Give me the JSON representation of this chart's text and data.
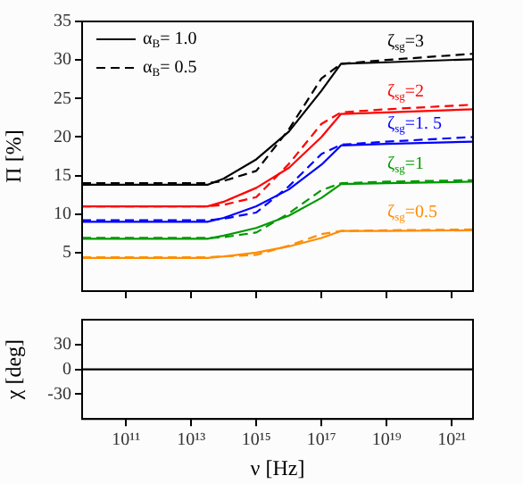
{
  "chart_data": [
    {
      "type": "line",
      "ylabel": "Π [%]",
      "log": "x",
      "xlim": [
        4500000000.0,
        4.5e+21
      ],
      "ylim": [
        0,
        35
      ],
      "yticks": [
        5,
        10,
        15,
        20,
        25,
        30,
        35
      ],
      "xticks": [
        {
          "value": 100000000000.0,
          "label": null
        },
        {
          "value": 10000000000000.0,
          "label": null
        },
        {
          "value": 1000000000000000.0,
          "label": null
        },
        {
          "value": 1e+17,
          "label": null
        },
        {
          "value": 1e+19,
          "label": null
        },
        {
          "value": 1e+21,
          "label": null
        }
      ],
      "tick_labels": "y",
      "legend": "top left",
      "marker": "none",
      "x": [
        4500000000.0,
        10000000000000.0,
        31600000000000.0,
        100000000000000.0,
        1000000000000000.0,
        1e+16,
        1e+17,
        4e+17,
        1e+19,
        4.5e+21
      ],
      "series": [
        {
          "name": "α$_{B}$= 1.0",
          "color": "#000000",
          "line_style": "solid",
          "values": [
            13.8,
            13.8,
            13.8,
            14.6,
            17.1,
            20.7,
            26.0,
            29.5,
            29.7,
            30.1
          ]
        },
        {
          "name": "α$_{B}$= 0.5",
          "color": "#000000",
          "line_style": "dashed",
          "values": [
            14.0,
            14.0,
            14.0,
            14.3,
            15.6,
            21.0,
            27.6,
            29.5,
            30.0,
            30.8
          ]
        },
        {
          "color": "#ff0000",
          "line_style": "solid",
          "values": [
            11,
            11,
            11,
            11.6,
            13.4,
            16.0,
            20.0,
            23.0,
            23.2,
            23.6
          ]
        },
        {
          "color": "#ff0000",
          "line_style": "dashed",
          "values": [
            11,
            11,
            11,
            11.2,
            12.2,
            16.5,
            21.7,
            23.2,
            23.6,
            24.2
          ]
        },
        {
          "color": "#0000ff",
          "line_style": "solid",
          "values": [
            9,
            9,
            9,
            9.5,
            11.0,
            13.2,
            16.4,
            18.9,
            19.1,
            19.4
          ]
        },
        {
          "color": "#0000ff",
          "line_style": "dashed",
          "values": [
            9.2,
            9.2,
            9.2,
            9.4,
            10.2,
            13.6,
            17.8,
            19,
            19.4,
            20
          ]
        },
        {
          "color": "#009900",
          "line_style": "solid",
          "values": [
            6.8,
            6.8,
            6.8,
            7.2,
            8.2,
            9.8,
            12.1,
            13.9,
            14.0,
            14.2
          ]
        },
        {
          "color": "#009900",
          "line_style": "dashed",
          "values": [
            6.9,
            6.9,
            6.9,
            7.0,
            7.6,
            10.1,
            13.1,
            14,
            14.2,
            14.4
          ]
        },
        {
          "color": "#ff8c00",
          "line_style": "solid",
          "values": [
            4.3,
            4.3,
            4.3,
            4.5,
            5.0,
            5.8,
            6.9,
            7.8,
            7.8,
            7.9
          ]
        },
        {
          "color": "#ff8c00",
          "line_style": "dashed",
          "values": [
            4.4,
            4.4,
            4.4,
            4.5,
            4.7,
            5.9,
            7.4,
            7.8,
            7.9,
            8.0
          ]
        }
      ],
      "annotations": [
        "ζ$_{sg}$=3",
        "ζ$_{sg}$=2",
        "ζ$_{sg}$=1. 5",
        "ζ$_{sg}$=1",
        "ζ$_{sg}$=0.5"
      ]
    },
    {
      "type": "line",
      "xlabel": "ν [Hz]",
      "ylabel": "χ [deg]",
      "log": "x",
      "xlim": [
        4500000000.0,
        4.5e+21
      ],
      "ylim": [
        -60,
        60
      ],
      "yticks": [
        -30,
        0,
        30
      ],
      "xticks": [
        {
          "value": 100000000000.0,
          "label": "10¹¹"
        },
        {
          "value": 10000000000000.0,
          "label": "10¹³"
        },
        {
          "value": 1000000000000000.0,
          "label": "10¹⁵"
        },
        {
          "value": 1e+17,
          "label": "10¹⁷"
        },
        {
          "value": 1e+19,
          "label": "10¹⁹"
        },
        {
          "value": 1e+21,
          "label": "10²¹"
        }
      ],
      "marker": "none",
      "x": [
        4500000000.0,
        4.5e+21
      ],
      "series": [
        {
          "color": "#000000",
          "line_style": "solid",
          "values": [
            0,
            0
          ]
        }
      ]
    }
  ]
}
